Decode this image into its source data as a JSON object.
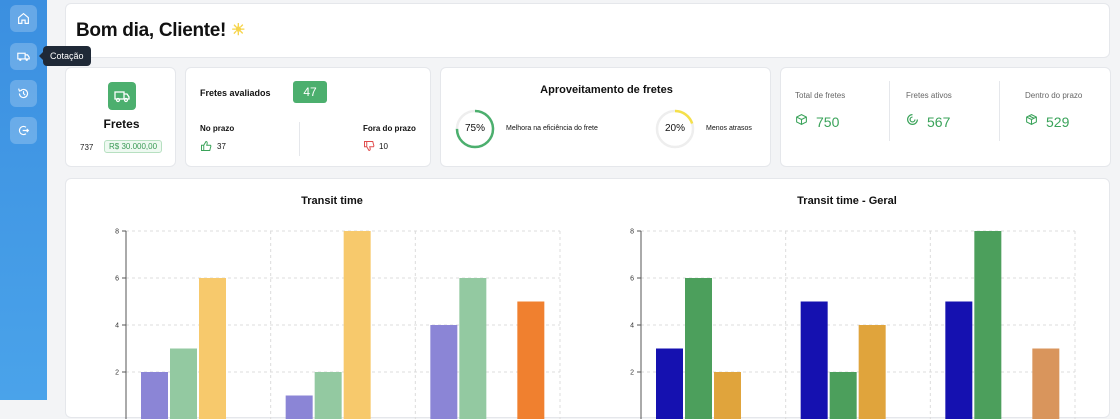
{
  "sidebar": {
    "items": [
      {
        "name": "home",
        "icon": "home-icon"
      },
      {
        "name": "cotacao",
        "icon": "truck-icon"
      },
      {
        "name": "history",
        "icon": "history-icon"
      },
      {
        "name": "logout",
        "icon": "logout-icon"
      }
    ],
    "tooltip": "Cotação"
  },
  "greeting": {
    "title_prefix": "Bom dia, ",
    "name": "Cliente!",
    "icon": "sun-icon"
  },
  "fretes": {
    "title": "Fretes",
    "count": "737",
    "value": "R$ 30.000,00",
    "icon": "truck-icon"
  },
  "avaliados": {
    "title": "Fretes avaliados",
    "count": "47",
    "on_time_label": "No prazo",
    "on_time_value": "37",
    "late_label": "Fora do prazo",
    "late_value": "10"
  },
  "aproveitamento": {
    "title": "Aproveitamento de fretes",
    "efficiency_pct": "75%",
    "efficiency_label": "Melhora na eficiência do frete",
    "delays_pct": "20%",
    "delays_label": "Menos atrasos",
    "efficiency_value": 75,
    "delays_value": 20
  },
  "stats": [
    {
      "label": "Total de fretes",
      "value": "750",
      "icon": "package-icon"
    },
    {
      "label": "Fretes ativos",
      "value": "567",
      "icon": "spinner-icon"
    },
    {
      "label": "Dentro do prazo",
      "value": "529",
      "icon": "box-icon"
    }
  ],
  "colors": {
    "accent_green": "#4caf6e",
    "sidebar_blue": "#3b8fe0",
    "value_green": "#3aa35a"
  },
  "chart_data": [
    {
      "type": "bar",
      "title": "Transit time",
      "yticks": [
        2,
        4,
        6,
        8
      ],
      "ylim": [
        0,
        8
      ],
      "grid": true,
      "groups": [
        {
          "bars": [
            {
              "value": 2,
              "color": "#8b85d6"
            },
            {
              "value": 3,
              "color": "#93c9a1"
            },
            {
              "value": 6,
              "color": "#f7c96c"
            }
          ]
        },
        {
          "bars": [
            {
              "value": 1,
              "color": "#8b85d6"
            },
            {
              "value": 2,
              "color": "#93c9a1"
            },
            {
              "value": 8,
              "color": "#f7c96c"
            }
          ]
        },
        {
          "bars": [
            {
              "value": 4,
              "color": "#8b85d6"
            },
            {
              "value": 6,
              "color": "#93c9a1"
            },
            {
              "value": 5,
              "color": "#f0802f"
            }
          ]
        }
      ]
    },
    {
      "type": "bar",
      "title": "Transit time - Geral",
      "yticks": [
        2,
        4,
        6,
        8
      ],
      "ylim": [
        0,
        8
      ],
      "grid": true,
      "groups": [
        {
          "bars": [
            {
              "value": 3,
              "color": "#1511b0"
            },
            {
              "value": 6,
              "color": "#4c9f5c"
            },
            {
              "value": 2,
              "color": "#e0a43c"
            }
          ]
        },
        {
          "bars": [
            {
              "value": 5,
              "color": "#1511b0"
            },
            {
              "value": 2,
              "color": "#4c9f5c"
            },
            {
              "value": 4,
              "color": "#e0a43c"
            }
          ]
        },
        {
          "bars": [
            {
              "value": 5,
              "color": "#1511b0"
            },
            {
              "value": 8,
              "color": "#4c9f5c"
            },
            {
              "value": 3,
              "color": "#d9955c"
            }
          ]
        }
      ]
    }
  ]
}
